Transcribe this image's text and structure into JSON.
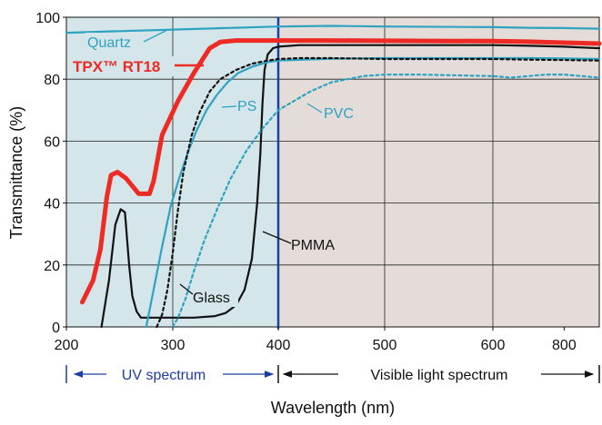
{
  "chart_data": {
    "type": "line",
    "xlabel": "Wavelength (nm)",
    "ylabel": "Transmittance (%)",
    "ylim": [
      0,
      100
    ],
    "x_ticks": [
      "200",
      "300",
      "400",
      "500",
      "600",
      "800"
    ],
    "y_ticks": [
      "0",
      "20",
      "40",
      "60",
      "80",
      "100"
    ],
    "grid": true,
    "regions": [
      {
        "label": "UV spectrum",
        "from": 200,
        "to": 400,
        "color": "#d4e6ea"
      },
      {
        "label": "Visible light spectrum",
        "from": 400,
        "to": 900,
        "color": "#e4dcd8"
      }
    ],
    "series": [
      {
        "name": "Quartz",
        "color": "#2ea3c1",
        "style": "solid",
        "x": [
          200,
          250,
          300,
          350,
          400,
          450,
          500,
          600,
          700,
          800,
          900
        ],
        "y": [
          95,
          95.5,
          96,
          96.5,
          97,
          97.2,
          97,
          96.8,
          96.6,
          96.5,
          96.3
        ]
      },
      {
        "name": "TPX™ RT18",
        "color": "#ee2a24",
        "style": "solid",
        "x": [
          215,
          225,
          232,
          238,
          242,
          248,
          256,
          268,
          278,
          282,
          290,
          305,
          320,
          335,
          345,
          360,
          380,
          400,
          450,
          500,
          600,
          700,
          800,
          900
        ],
        "y": [
          8,
          15,
          25,
          42,
          49,
          50,
          48,
          43,
          43,
          47,
          62,
          73,
          82,
          90,
          92,
          92.5,
          92.5,
          92.5,
          92.5,
          92.4,
          92.3,
          92.1,
          91.8,
          91.5
        ]
      },
      {
        "name": "PMMA",
        "color": "#111111",
        "style": "solid",
        "x": [
          233,
          240,
          246,
          251,
          255,
          259,
          262,
          266,
          270,
          276,
          284,
          300,
          320,
          340,
          350,
          360,
          368,
          375,
          380,
          383,
          385,
          387,
          390,
          395,
          400,
          420,
          450,
          500,
          600,
          700,
          800,
          900
        ],
        "y": [
          0,
          15,
          33,
          38,
          37,
          20,
          10,
          5,
          3,
          3,
          3,
          3,
          3,
          3.5,
          4.5,
          7,
          12,
          22,
          40,
          56,
          72,
          83,
          88,
          90,
          90.5,
          91,
          91,
          91,
          91,
          90.8,
          90.5,
          90
        ]
      },
      {
        "name": "PS",
        "color": "#2ea3c1",
        "style": "solid",
        "x": [
          275,
          282,
          290,
          298,
          306,
          314,
          322,
          332,
          342,
          352,
          362,
          375,
          390,
          400,
          450,
          500,
          600,
          700,
          800,
          900
        ],
        "y": [
          0,
          12,
          26,
          39,
          48,
          56,
          63,
          70,
          75,
          79,
          82,
          84,
          85.5,
          86,
          86.6,
          86.8,
          86.8,
          86.8,
          86.7,
          86.5
        ]
      },
      {
        "name": "Glass",
        "color": "#111111",
        "style": "dotted",
        "x": [
          285,
          290,
          295,
          300,
          305,
          310,
          318,
          325,
          335,
          345,
          360,
          375,
          390,
          400,
          420,
          450,
          500,
          600,
          700,
          800,
          900
        ],
        "y": [
          0,
          4,
          12,
          24,
          38,
          50,
          62,
          69,
          76,
          80,
          83,
          85,
          86,
          86.5,
          86.8,
          86.8,
          86.5,
          86.5,
          86.3,
          86.2,
          86
        ]
      },
      {
        "name": "PVC",
        "color": "#2ea3c1",
        "style": "dotted",
        "x": [
          300,
          305,
          312,
          320,
          330,
          342,
          355,
          370,
          385,
          400,
          430,
          450,
          480,
          500,
          530,
          600,
          650,
          700,
          750,
          800,
          900
        ],
        "y": [
          0,
          3,
          9,
          18,
          28,
          38,
          48,
          57,
          64,
          70,
          76,
          79,
          81,
          81.5,
          81.5,
          81,
          80.5,
          81,
          81.5,
          81.5,
          80.5
        ]
      }
    ],
    "annotations": [
      {
        "text": "Quartz",
        "color": "#2ea3c1"
      },
      {
        "text": "TPX™ RT18",
        "color": "#ee2a24"
      },
      {
        "text": "PS",
        "color": "#2ea3c1"
      },
      {
        "text": "PVC",
        "color": "#2ea3c1"
      },
      {
        "text": "Glass",
        "color": "#111111"
      },
      {
        "text": "PMMA",
        "color": "#111111"
      }
    ]
  }
}
